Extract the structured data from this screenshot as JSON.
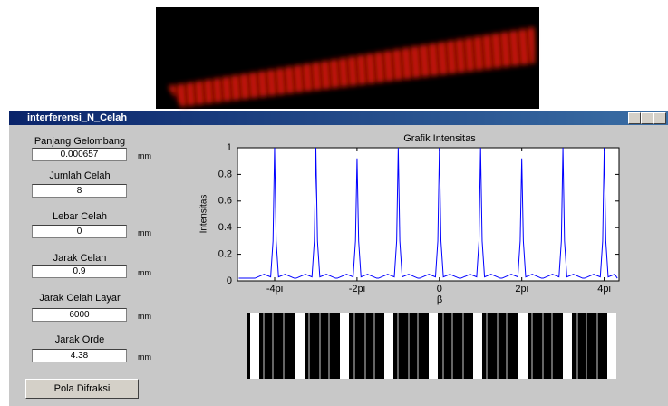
{
  "window": {
    "title": "interferensi_N_Celah"
  },
  "form": {
    "fields": [
      {
        "label": "Panjang Gelombang",
        "value": "0.000657",
        "unit": "mm"
      },
      {
        "label": "Jumlah Celah",
        "value": "8"
      },
      {
        "label": "Lebar Celah",
        "value": "0",
        "unit": "mm"
      },
      {
        "label": "Jarak Celah",
        "value": "0.9",
        "unit": "mm"
      },
      {
        "label": "Jarak Celah Layar",
        "value": "6000",
        "unit": "mm"
      },
      {
        "label": "Jarak Orde",
        "value": "4.38",
        "unit": "mm"
      }
    ],
    "button": "Pola Difraksi"
  },
  "chart_data": {
    "type": "line",
    "title": "Grafik Intensitas",
    "x_label": "β",
    "y_label": "Intensitas",
    "color": "#0000ff",
    "x": [
      -15.3,
      -14.07,
      -13.37,
      -12.87,
      -12.69,
      -12.57,
      -12.45,
      -12.27,
      -11.77,
      -11.07,
      -10.92,
      -10.22,
      -9.72,
      -9.54,
      -9.42,
      -9.3,
      -9.12,
      -8.62,
      -7.92,
      -7.78,
      -7.08,
      -6.58,
      -6.4,
      -6.28,
      -6.16,
      -5.98,
      -5.48,
      -4.78,
      -4.64,
      -3.94,
      -3.44,
      -3.26,
      -3.14,
      -3.02,
      -2.84,
      -2.34,
      -1.64,
      -1.5,
      -0.8,
      -0.3,
      -0.12,
      0,
      0.12,
      0.3,
      0.8,
      1.5,
      1.64,
      2.34,
      2.84,
      3.02,
      3.14,
      3.26,
      3.44,
      3.94,
      4.64,
      4.78,
      5.48,
      5.98,
      6.16,
      6.28,
      6.4,
      6.58,
      7.08,
      7.78,
      7.92,
      8.62,
      9.12,
      9.3,
      9.42,
      9.54,
      9.72,
      10.22,
      10.92,
      11.07,
      11.77,
      12.27,
      12.45,
      12.57,
      12.69,
      12.87,
      13.37,
      13.57
    ],
    "values": [
      0.02,
      0.02,
      0.05,
      0.03,
      0.3,
      1,
      0.3,
      0.03,
      0.05,
      0.02,
      0.02,
      0.05,
      0.03,
      0.3,
      1,
      0.3,
      0.03,
      0.05,
      0.02,
      0.02,
      0.05,
      0.03,
      0.3,
      0.92,
      0.3,
      0.03,
      0.05,
      0.02,
      0.02,
      0.05,
      0.03,
      0.3,
      1,
      0.3,
      0.03,
      0.05,
      0.02,
      0.02,
      0.05,
      0.03,
      0.3,
      1,
      0.3,
      0.03,
      0.05,
      0.02,
      0.02,
      0.05,
      0.03,
      0.3,
      1,
      0.3,
      0.03,
      0.05,
      0.02,
      0.02,
      0.05,
      0.03,
      0.3,
      0.92,
      0.3,
      0.03,
      0.05,
      0.02,
      0.02,
      0.05,
      0.03,
      0.3,
      1,
      0.3,
      0.03,
      0.05,
      0.02,
      0.02,
      0.05,
      0.03,
      0.3,
      1,
      0.3,
      0.03,
      0.05,
      0.02
    ],
    "xlim": [
      -15.4,
      13.7
    ],
    "xticks": [
      {
        "value": -12.566,
        "label": "-4pi"
      },
      {
        "value": -6.283,
        "label": "-2pi"
      },
      0,
      {
        "value": 6.283,
        "label": "2pi"
      },
      {
        "value": 12.566,
        "label": "4pi"
      }
    ],
    "ylim": [
      0,
      1
    ],
    "yticks": [
      0,
      0.2,
      0.4,
      0.6,
      0.8,
      1
    ]
  }
}
